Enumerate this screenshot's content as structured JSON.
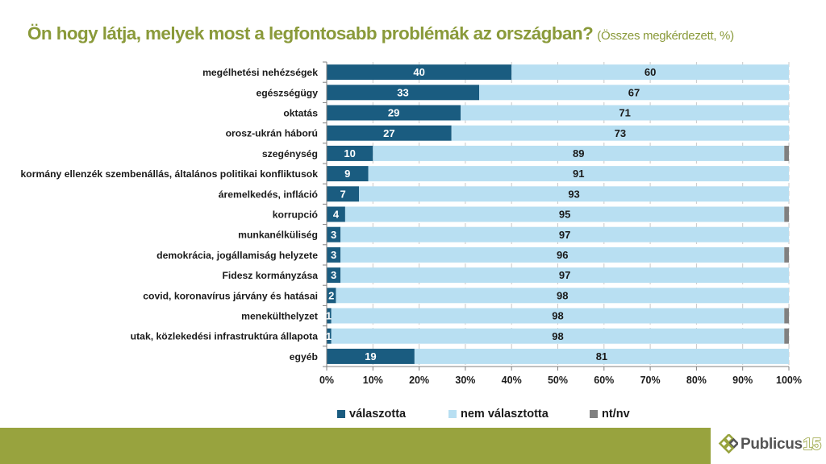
{
  "title": {
    "main": "Ön hogy látja, melyek most a legfontosabb problémák az országban?",
    "sub": "(Összes megkérdezett, %)"
  },
  "colors": {
    "title": "#8a9a3a",
    "chosen": "#1a5c80",
    "not_chosen": "#b8dff2",
    "nt_nv": "#808080",
    "footer": "#98a33e"
  },
  "chart_data": {
    "type": "bar",
    "orientation": "horizontal",
    "stacked": true,
    "title": "Ön hogy látja, melyek most a legfontosabb problémák az országban? (Összes megkérdezett, %)",
    "xlabel": "",
    "ylabel": "",
    "xlim": [
      0,
      100
    ],
    "x_ticks": [
      "0%",
      "10%",
      "20%",
      "30%",
      "40%",
      "50%",
      "60%",
      "70%",
      "80%",
      "90%",
      "100%"
    ],
    "grid": "vertical dashed",
    "legend_position": "bottom",
    "categories": [
      "megélhetési nehézségek",
      "egészségügy",
      "oktatás",
      "orosz-ukrán háború",
      "szegénység",
      "kormány ellenzék szembenállás, általános politikai konfliktusok",
      "áremelkedés, infláció",
      "korrupció",
      "munkanélküliség",
      "demokrácia, jogállamiság helyzete",
      "Fidesz kormányzása",
      "covid, koronavírus járvány és hatásai",
      "menekülthelyzet",
      "utak, közlekedési infrastruktúra állapota",
      "egyéb"
    ],
    "series": [
      {
        "name": "válaszotta",
        "color": "#1a5c80",
        "values": [
          40,
          33,
          29,
          27,
          10,
          9,
          7,
          4,
          3,
          3,
          3,
          2,
          1,
          1,
          19
        ]
      },
      {
        "name": "nem választotta",
        "color": "#b8dff2",
        "values": [
          60,
          67,
          71,
          73,
          89,
          91,
          93,
          95,
          97,
          96,
          97,
          98,
          98,
          98,
          81
        ]
      },
      {
        "name": "nt/nv",
        "color": "#808080",
        "values": [
          0,
          0,
          0,
          0,
          1,
          0,
          0,
          1,
          0,
          1,
          0,
          0,
          1,
          1,
          0
        ]
      }
    ]
  },
  "legend": [
    {
      "label": "válaszotta",
      "color": "#1a5c80"
    },
    {
      "label": "nem választotta",
      "color": "#b8dff2"
    },
    {
      "label": "nt/nv",
      "color": "#808080"
    }
  ],
  "logo": {
    "word": "Publicus",
    "number": "15"
  }
}
